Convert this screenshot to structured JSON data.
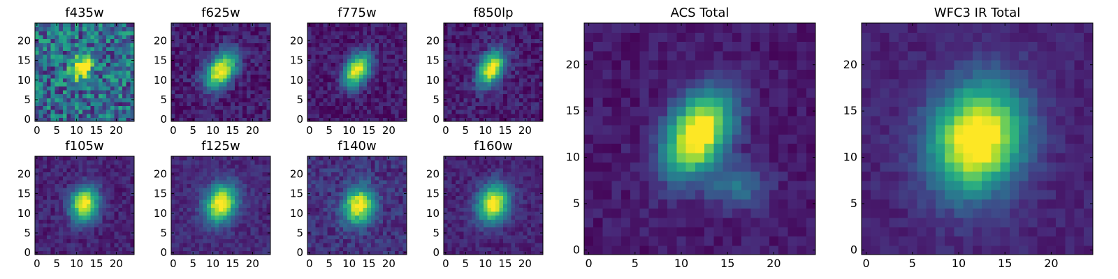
{
  "chart_data": [
    {
      "type": "heatmap",
      "title": "f435w",
      "noise": 0.28,
      "bg": 0.35,
      "amp": 0.85,
      "cx": 11.5,
      "cy": 13.5,
      "sx": 1.6,
      "sy": 2.4,
      "theta": -35,
      "seed": 11,
      "xlim": [
        0,
        24
      ],
      "ylim": [
        0,
        24
      ],
      "xticks": [
        0,
        5,
        10,
        15,
        20
      ],
      "yticks": [
        0,
        5,
        10,
        15,
        20
      ],
      "grid": false,
      "colormap": "viridis"
    },
    {
      "type": "heatmap",
      "title": "f625w",
      "noise": 0.1,
      "bg": 0.08,
      "amp": 0.95,
      "cx": 12,
      "cy": 12.5,
      "sx": 2.2,
      "sy": 3.6,
      "theta": -35,
      "seed": 22,
      "xlim": [
        0,
        24
      ],
      "ylim": [
        0,
        24
      ],
      "xticks": [
        0,
        5,
        10,
        15,
        20
      ],
      "yticks": [
        0,
        5,
        10,
        15,
        20
      ],
      "grid": false,
      "colormap": "viridis"
    },
    {
      "type": "heatmap",
      "title": "f775w",
      "noise": 0.09,
      "bg": 0.07,
      "amp": 0.95,
      "cx": 12,
      "cy": 12.5,
      "sx": 2.0,
      "sy": 3.2,
      "theta": -30,
      "seed": 33,
      "xlim": [
        0,
        24
      ],
      "ylim": [
        0,
        24
      ],
      "xticks": [
        0,
        5,
        10,
        15,
        20
      ],
      "yticks": [
        0,
        5,
        10,
        15,
        20
      ],
      "grid": false,
      "colormap": "viridis"
    },
    {
      "type": "heatmap",
      "title": "f850lp",
      "noise": 0.1,
      "bg": 0.08,
      "amp": 0.95,
      "cx": 11.5,
      "cy": 13,
      "sx": 2.0,
      "sy": 3.2,
      "theta": -30,
      "seed": 44,
      "xlim": [
        0,
        24
      ],
      "ylim": [
        0,
        24
      ],
      "xticks": [
        0,
        5,
        10,
        15,
        20
      ],
      "yticks": [
        0,
        5,
        10,
        15,
        20
      ],
      "grid": false,
      "colormap": "viridis"
    },
    {
      "type": "heatmap",
      "title": "f105w",
      "noise": 0.08,
      "bg": 0.1,
      "amp": 0.95,
      "cx": 12,
      "cy": 12.5,
      "sx": 2.4,
      "sy": 3.0,
      "theta": -15,
      "seed": 55,
      "xlim": [
        0,
        24
      ],
      "ylim": [
        0,
        24
      ],
      "xticks": [
        0,
        5,
        10,
        15,
        20
      ],
      "yticks": [
        0,
        5,
        10,
        15,
        20
      ],
      "grid": false,
      "colormap": "viridis"
    },
    {
      "type": "heatmap",
      "title": "f125w",
      "noise": 0.07,
      "bg": 0.12,
      "amp": 0.95,
      "cx": 12,
      "cy": 12.5,
      "sx": 2.6,
      "sy": 3.4,
      "theta": -20,
      "seed": 66,
      "xlim": [
        0,
        24
      ],
      "ylim": [
        0,
        24
      ],
      "xticks": [
        0,
        5,
        10,
        15,
        20
      ],
      "yticks": [
        0,
        5,
        10,
        15,
        20
      ],
      "grid": false,
      "colormap": "viridis"
    },
    {
      "type": "heatmap",
      "title": "f140w",
      "noise": 0.1,
      "bg": 0.14,
      "amp": 0.9,
      "cx": 12.5,
      "cy": 12,
      "sx": 2.6,
      "sy": 3.2,
      "theta": -20,
      "seed": 77,
      "xlim": [
        0,
        24
      ],
      "ylim": [
        0,
        24
      ],
      "xticks": [
        0,
        5,
        10,
        15,
        20
      ],
      "yticks": [
        0,
        5,
        10,
        15,
        20
      ],
      "grid": false,
      "colormap": "viridis"
    },
    {
      "type": "heatmap",
      "title": "f160w",
      "noise": 0.07,
      "bg": 0.1,
      "amp": 0.95,
      "cx": 12,
      "cy": 12.5,
      "sx": 2.6,
      "sy": 3.4,
      "theta": -20,
      "seed": 88,
      "xlim": [
        0,
        24
      ],
      "ylim": [
        0,
        24
      ],
      "xticks": [
        0,
        5,
        10,
        15,
        20
      ],
      "yticks": [
        0,
        5,
        10,
        15,
        20
      ],
      "grid": false,
      "colormap": "viridis"
    },
    {
      "type": "heatmap",
      "title": "ACS Total",
      "noise": 0.06,
      "bg": 0.07,
      "amp": 1.1,
      "cx": 11.8,
      "cy": 12.5,
      "sx": 2.1,
      "sy": 3.3,
      "theta": -30,
      "seed": 99,
      "tail": true,
      "xlim": [
        0,
        24
      ],
      "ylim": [
        0,
        24
      ],
      "xticks": [
        0,
        5,
        10,
        15,
        20
      ],
      "yticks": [
        0,
        5,
        10,
        15,
        20
      ],
      "grid": false,
      "colormap": "viridis"
    },
    {
      "type": "heatmap",
      "title": "WFC3 IR Total",
      "noise": 0.05,
      "bg": 0.1,
      "amp": 1.05,
      "cx": 12,
      "cy": 12,
      "sx": 3.3,
      "sy": 4.1,
      "theta": -20,
      "seed": 111,
      "xlim": [
        0,
        24
      ],
      "ylim": [
        0,
        24
      ],
      "xticks": [
        0,
        5,
        10,
        15,
        20
      ],
      "yticks": [
        0,
        5,
        10,
        15,
        20
      ],
      "grid": false,
      "colormap": "viridis"
    }
  ]
}
